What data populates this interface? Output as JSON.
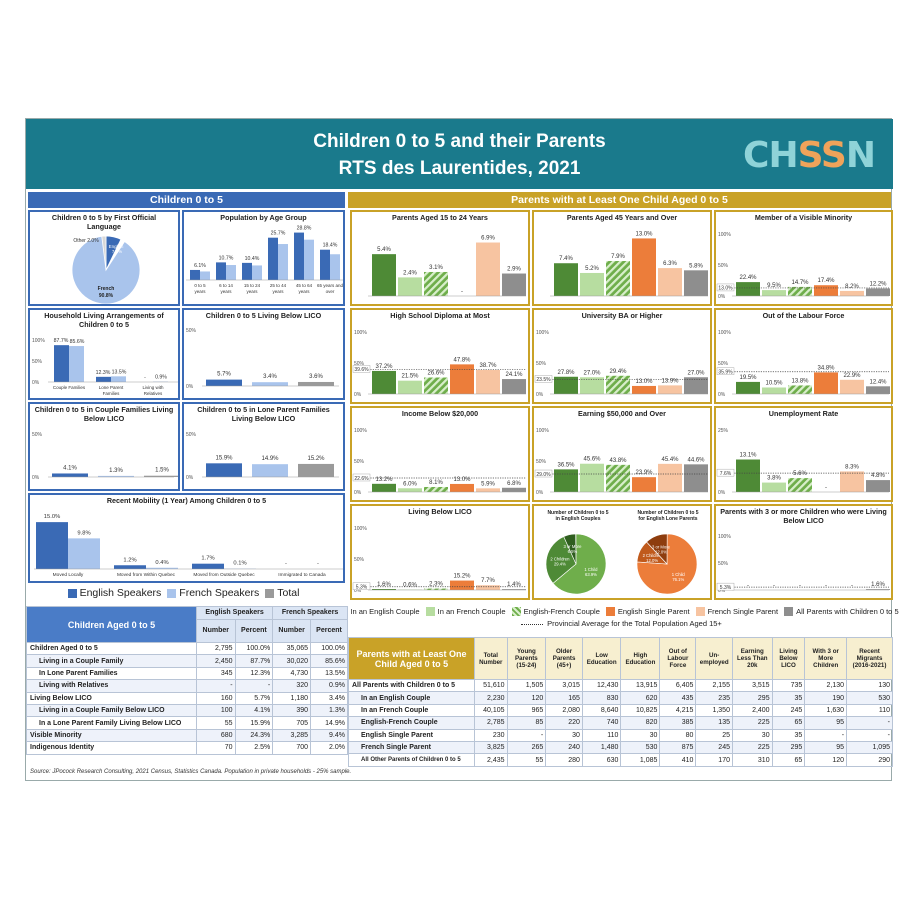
{
  "header": {
    "title1": "Children 0 to 5 and their Parents",
    "title2": "RTS des Laurentides, 2021",
    "logo": "CHSSN"
  },
  "colors": {
    "eng": "#3a6ab5",
    "fre": "#a9c4ec",
    "total": "#9a9a9a",
    "engCouple": "#4e8a36",
    "freCouple": "#b7dda0",
    "efCouple": "#6fae4b",
    "engSingle": "#ec7d3a",
    "freSingle": "#f7c4a1",
    "all": "#8e8e8e",
    "blueBand": "#3a6ab5",
    "goldBand": "#c9a227"
  },
  "bands": {
    "left": "Children 0 to 5",
    "right": "Parents with at Least One Child Aged 0 to 5"
  },
  "left": {
    "lang": {
      "title": "Children 0 to 5 by First Official Language",
      "slices": [
        {
          "label": "French",
          "value": "90.8%",
          "pct": 90.8
        },
        {
          "label": "English",
          "value": "7.2%",
          "pct": 7.2
        },
        {
          "label": "Other",
          "value": "2.0%",
          "pct": 2.0
        }
      ]
    },
    "age": {
      "title": "Population by Age Group",
      "cats": [
        "0 to 5 years",
        "6 to 14 years",
        "15 to 24 years",
        "25 to 44 years",
        "45 to 64 years",
        "65 years and over"
      ],
      "eng": [
        6.1,
        10.7,
        10.4,
        25.7,
        28.8,
        18.4
      ],
      "labels": [
        "6.1%",
        "10.7%",
        "10.4%",
        "25.7%",
        "28.8%",
        "18.4%"
      ]
    },
    "household": {
      "title": "Household Living Arrangements of Children 0 to 5",
      "cats": [
        "Couple Families",
        "Lone Parent Families",
        "Living with Relatives"
      ],
      "eng": [
        87.7,
        12.3,
        null
      ],
      "fre": [
        85.6,
        13.5,
        0.9
      ],
      "labels": [
        [
          "87.7%",
          "85.6%"
        ],
        [
          "12.3%",
          "13.5%"
        ],
        [
          "-",
          "0.9%"
        ]
      ],
      "axis": [
        "100%",
        "50%",
        "0%"
      ]
    },
    "lico": {
      "title": "Children 0 to 5 Living Below LICO",
      "vals": [
        5.7,
        3.4,
        3.6
      ],
      "labels": [
        "5.7%",
        "3.4%",
        "3.6%"
      ],
      "axis": [
        "50%",
        "0%"
      ]
    },
    "coupleLico": {
      "title": "Children 0 to 5 in Couple Families Living Below LICO",
      "vals": [
        4.1,
        1.3,
        1.5
      ],
      "labels": [
        "4.1%",
        "1.3%",
        "1.5%"
      ],
      "axis": [
        "50%",
        "0%"
      ]
    },
    "loneLico": {
      "title": "Children 0 to 5 in Lone Parent Families Living Below LICO",
      "vals": [
        15.9,
        14.9,
        15.2
      ],
      "labels": [
        "15.9%",
        "14.9%",
        "15.2%"
      ],
      "axis": [
        "50%",
        "0%"
      ]
    },
    "mobility": {
      "title": "Recent Mobility (1 Year) Among Children 0 to 5",
      "cats": [
        "Moved Locally",
        "Moved from Within Quebec",
        "Moved from Outside Quebec",
        "Immigrated to Canada"
      ],
      "eng": [
        15.0,
        1.2,
        1.7,
        null
      ],
      "fre": [
        9.8,
        0.4,
        0.1,
        null
      ],
      "labels": [
        [
          "15.0%",
          "9.8%"
        ],
        [
          "1.2%",
          "0.4%"
        ],
        [
          "1.7%",
          "0.1%"
        ],
        [
          "-",
          "-"
        ]
      ]
    },
    "legend": [
      "English Speakers",
      "French Speakers",
      "Total"
    ]
  },
  "right": {
    "charts": [
      {
        "title": "Parents Aged 15 to 24 Years",
        "vals": [
          5.4,
          2.4,
          3.1,
          null,
          6.9,
          2.9
        ],
        "labels": [
          "5.4%",
          "2.4%",
          "3.1%",
          "-",
          "6.9%",
          "2.9%"
        ],
        "max": 8,
        "axis": [],
        "avg": null
      },
      {
        "title": "Parents Aged 45 Years and Over",
        "vals": [
          7.4,
          5.2,
          7.9,
          13.0,
          6.3,
          5.8
        ],
        "labels": [
          "7.4%",
          "5.2%",
          "7.9%",
          "13.0%",
          "6.3%",
          "5.8%"
        ],
        "max": 14,
        "axis": [],
        "avg": null
      },
      {
        "title": "Member of a Visible Minority",
        "vals": [
          22.4,
          9.5,
          14.7,
          17.4,
          8.2,
          12.2
        ],
        "labels": [
          "22.4%",
          "9.5%",
          "14.7%",
          "17.4%",
          "8.2%",
          "12.2%"
        ],
        "max": 100,
        "axis": [
          "100%",
          "50%",
          "0%"
        ],
        "avg": "13.0%",
        "avgv": 13.0
      },
      {
        "title": "High School Diploma at Most",
        "vals": [
          37.2,
          21.5,
          26.6,
          47.8,
          38.7,
          24.1
        ],
        "labels": [
          "37.2%",
          "21.5%",
          "26.6%",
          "47.8%",
          "38.7%",
          "24.1%"
        ],
        "max": 100,
        "axis": [
          "100%",
          "50%",
          "0%"
        ],
        "avg": "39.6%",
        "avgv": 39.6
      },
      {
        "title": "University BA or Higher",
        "vals": [
          27.8,
          27.0,
          29.4,
          13.0,
          13.9,
          27.0
        ],
        "labels": [
          "27.8%",
          "27.0%",
          "29.4%",
          "13.0%",
          "13.9%",
          "27.0%"
        ],
        "max": 100,
        "axis": [
          "100%",
          "50%",
          "0%"
        ],
        "avg": "23.5%",
        "avgv": 23.5
      },
      {
        "title": "Out of the Labour Force",
        "vals": [
          19.5,
          10.5,
          13.8,
          34.8,
          22.9,
          12.4
        ],
        "labels": [
          "19.5%",
          "10.5%",
          "13.8%",
          "34.8%",
          "22.9%",
          "12.4%"
        ],
        "max": 100,
        "axis": [
          "100%",
          "50%",
          "0%"
        ],
        "avg": "35.9%",
        "avgv": 35.9
      },
      {
        "title": "Income Below $20,000",
        "vals": [
          13.2,
          6.0,
          8.1,
          13.0,
          5.9,
          6.8
        ],
        "labels": [
          "13.2%",
          "6.0%",
          "8.1%",
          "13.0%",
          "5.9%",
          "6.8%"
        ],
        "max": 100,
        "axis": [
          "100%",
          "50%",
          "0%"
        ],
        "avg": "22.6%",
        "avgv": 22.6
      },
      {
        "title": "Earning $50,000 and Over",
        "vals": [
          36.5,
          45.6,
          43.8,
          23.9,
          45.4,
          44.6
        ],
        "labels": [
          "36.5%",
          "45.6%",
          "43.8%",
          "23.9%",
          "45.4%",
          "44.6%"
        ],
        "max": 100,
        "axis": [
          "100%",
          "50%",
          "0%"
        ],
        "avg": "29.0%",
        "avgv": 29.0
      },
      {
        "title": "Unemployment Rate",
        "vals": [
          13.1,
          3.8,
          5.6,
          null,
          8.3,
          4.8
        ],
        "labels": [
          "13.1%",
          "3.8%",
          "5.6%",
          "-",
          "8.3%",
          "4.8%"
        ],
        "max": 25,
        "axis": [
          "25%",
          "0%"
        ],
        "avg": "7.6%",
        "avgv": 7.6
      },
      {
        "title": "Living Below LICO",
        "vals": [
          1.6,
          0.6,
          2.3,
          15.2,
          7.7,
          1.4
        ],
        "labels": [
          "1.6%",
          "0.6%",
          "2.3%",
          "15.2%",
          "7.7%",
          "1.4%"
        ],
        "max": 100,
        "axis": [
          "100%",
          "50%",
          "0%"
        ],
        "avg": "5.3%",
        "avgv": 5.3
      },
      {
        "title": "Parents with 3 or more Children who were Living Below LICO",
        "vals": [
          null,
          null,
          null,
          null,
          null,
          1.6
        ],
        "labels": [
          "-",
          "-",
          "-",
          "-",
          "-",
          "1.6%"
        ],
        "max": 100,
        "axis": [
          "100%",
          "50%",
          "0%"
        ],
        "avg": "5.3%",
        "avgv": 5.3
      }
    ],
    "pie1": {
      "title": "Number of Children 0 to 5 in English Couples",
      "slices": [
        {
          "label": "1 Child",
          "value": "63.9%",
          "pct": 63.9
        },
        {
          "label": "2 Children",
          "value": "29.4%",
          "pct": 29.4
        },
        {
          "label": "3 or More",
          "value": "6.5%",
          "pct": 6.5
        }
      ]
    },
    "pie2": {
      "title": "Number of Children 0 to 5 for English Lone Parents",
      "slices": [
        {
          "label": "1 Child",
          "value": "76.1%",
          "pct": 76.1
        },
        {
          "label": "2 Children",
          "value": "12.0%",
          "pct": 12.0
        },
        {
          "label": "3 or More",
          "value": "12.0%",
          "pct": 12.0
        }
      ]
    },
    "legend": [
      "In an English Couple",
      "In an French Couple",
      "English-French Couple",
      "English Single Parent",
      "French Single Parent",
      "All Parents with Children 0 to 5"
    ],
    "avgLegend": "Provincial Average for the Total Population Aged 15+"
  },
  "tableL": {
    "title": "Children Aged 0 to 5",
    "groups": [
      "English Speakers",
      "French Speakers"
    ],
    "cols": [
      "Number",
      "Percent",
      "Number",
      "Percent"
    ],
    "rows": [
      {
        "label": "Children Aged 0 to 5",
        "v": [
          "2,795",
          "100.0%",
          "35,065",
          "100.0%"
        ],
        "b": true
      },
      {
        "label": "Living in a Couple Family",
        "v": [
          "2,450",
          "87.7%",
          "30,020",
          "85.6%"
        ],
        "b": false
      },
      {
        "label": "In Lone Parent Families",
        "v": [
          "345",
          "12.3%",
          "4,730",
          "13.5%"
        ],
        "b": false
      },
      {
        "label": "Living with Relatives",
        "v": [
          "-",
          "-",
          "320",
          "0.9%"
        ],
        "b": false
      },
      {
        "label": "Living Below LICO",
        "v": [
          "160",
          "5.7%",
          "1,180",
          "3.4%"
        ],
        "b": true
      },
      {
        "label": "Living in a Couple Family Below LICO",
        "v": [
          "100",
          "4.1%",
          "390",
          "1.3%"
        ],
        "b": false
      },
      {
        "label": "In a Lone Parent Family Living Below LICO",
        "v": [
          "55",
          "15.9%",
          "705",
          "14.9%"
        ],
        "b": false
      },
      {
        "label": "Visible Minority",
        "v": [
          "680",
          "24.3%",
          "3,285",
          "9.4%"
        ],
        "b": true
      },
      {
        "label": "Indigenous Identity",
        "v": [
          "70",
          "2.5%",
          "700",
          "2.0%"
        ],
        "b": true
      }
    ]
  },
  "tableR": {
    "title": "Parents with at Least One Child Aged 0 to 5",
    "cols": [
      "Total Number",
      "Young Parents (15-24)",
      "Older Parents (45+)",
      "Low Education",
      "High Education",
      "Out of Labour Force",
      "Un-employed",
      "Earning Less Than 20k",
      "Living Below LICO",
      "With 3 or More Children",
      "Recent Migrants (2016-2021)"
    ],
    "rows": [
      {
        "label": "All Parents with Children 0 to 5",
        "v": [
          "51,610",
          "1,505",
          "3,015",
          "12,430",
          "13,915",
          "6,405",
          "2,155",
          "3,515",
          "735",
          "2,130",
          "130"
        ]
      },
      {
        "label": "In an English Couple",
        "v": [
          "2,230",
          "120",
          "165",
          "830",
          "620",
          "435",
          "235",
          "295",
          "35",
          "190",
          "530"
        ]
      },
      {
        "label": "In an French Couple",
        "v": [
          "40,105",
          "965",
          "2,080",
          "8,640",
          "10,825",
          "4,215",
          "1,350",
          "2,400",
          "245",
          "1,630",
          "110"
        ]
      },
      {
        "label": "English-French Couple",
        "v": [
          "2,785",
          "85",
          "220",
          "740",
          "820",
          "385",
          "135",
          "225",
          "65",
          "95",
          "-"
        ]
      },
      {
        "label": "English Single Parent",
        "v": [
          "230",
          "-",
          "30",
          "110",
          "30",
          "80",
          "25",
          "30",
          "35",
          "-",
          "-"
        ]
      },
      {
        "label": "French Single Parent",
        "v": [
          "3,825",
          "265",
          "240",
          "1,480",
          "530",
          "875",
          "245",
          "225",
          "295",
          "95",
          "1,095"
        ]
      },
      {
        "label": "All Other Parents of Children 0 to 5",
        "v": [
          "2,435",
          "55",
          "280",
          "630",
          "1,085",
          "410",
          "170",
          "310",
          "65",
          "120",
          "290"
        ]
      }
    ]
  },
  "source": "Source: JPocock Research Consulting, 2021 Census, Statistics Canada. Population in private households - 25% sample."
}
